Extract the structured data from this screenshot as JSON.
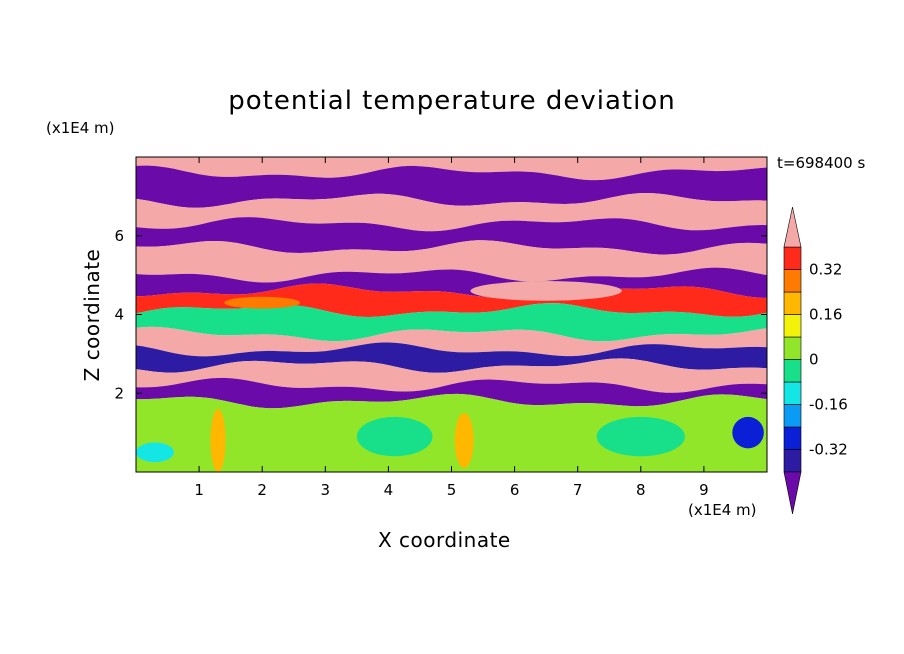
{
  "chart_data": {
    "type": "heatmap",
    "title": "potential temperature deviation",
    "xlabel": "X coordinate",
    "ylabel": "Z coordinate",
    "x_unit": "(x1E4 m)",
    "z_unit": "(x1E4 m)",
    "time_label": "t=698400 s",
    "xlim": [
      0,
      10
    ],
    "ylim": [
      0,
      8
    ],
    "x_ticks": [
      "1",
      "2",
      "3",
      "4",
      "5",
      "6",
      "7",
      "8",
      "9"
    ],
    "y_ticks": [
      "2",
      "4",
      "6"
    ],
    "colorbar": {
      "labels": [
        "0.32",
        "0.16",
        "0",
        "-0.16",
        "-0.32"
      ],
      "label_values": [
        0.32,
        0.16,
        0,
        -0.16,
        -0.32
      ],
      "levels": [
        -0.4,
        -0.32,
        -0.24,
        -0.16,
        -0.08,
        0,
        0.08,
        0.16,
        0.24,
        0.32,
        0.4
      ],
      "colors": [
        "#6a0aa8",
        "#2e1ba3",
        "#0a1fd6",
        "#0a9cf5",
        "#14e6e6",
        "#18e08a",
        "#92e62a",
        "#f2f20a",
        "#ffb700",
        "#ff7a00",
        "#ff2a1a",
        "#f5a8a8"
      ],
      "extend": "both"
    },
    "field_bands": [
      {
        "z": [
          7.6,
          8.0
        ],
        "value": 0.45
      },
      {
        "z": [
          6.9,
          7.6
        ],
        "value": -0.45
      },
      {
        "z": [
          6.3,
          6.9
        ],
        "value": 0.45
      },
      {
        "z": [
          5.7,
          6.3
        ],
        "value": -0.45
      },
      {
        "z": [
          5.0,
          5.7
        ],
        "value": 0.45
      },
      {
        "z": [
          4.6,
          5.0
        ],
        "value": -0.45
      },
      {
        "z": [
          4.1,
          4.6
        ],
        "value": 0.35
      },
      {
        "z": [
          3.5,
          4.1
        ],
        "value": -0.05
      },
      {
        "z": [
          3.1,
          3.5
        ],
        "value": 0.45
      },
      {
        "z": [
          2.7,
          3.1
        ],
        "value": -0.35
      },
      {
        "z": [
          2.2,
          2.7
        ],
        "value": 0.45
      },
      {
        "z": [
          1.8,
          2.2
        ],
        "value": -0.45
      },
      {
        "z": [
          0.0,
          1.8
        ],
        "value": 0.05
      }
    ],
    "field_features": [
      {
        "x": 1.3,
        "z": 0.8,
        "rx": 0.12,
        "rz": 0.8,
        "value": 0.2
      },
      {
        "x": 5.2,
        "z": 0.8,
        "rx": 0.15,
        "rz": 0.7,
        "value": 0.2
      },
      {
        "x": 4.1,
        "z": 0.9,
        "rx": 0.6,
        "rz": 0.5,
        "value": -0.06
      },
      {
        "x": 8.0,
        "z": 0.9,
        "rx": 0.7,
        "rz": 0.5,
        "value": -0.06
      },
      {
        "x": 0.3,
        "z": 0.5,
        "rx": 0.3,
        "rz": 0.25,
        "value": -0.12
      },
      {
        "x": 9.7,
        "z": 1.0,
        "rx": 0.25,
        "rz": 0.4,
        "value": -0.3
      },
      {
        "x": 6.5,
        "z": 4.6,
        "rx": 1.2,
        "rz": 0.25,
        "value": 0.45
      },
      {
        "x": 2.0,
        "z": 4.3,
        "rx": 0.6,
        "rz": 0.15,
        "value": 0.3
      }
    ]
  }
}
